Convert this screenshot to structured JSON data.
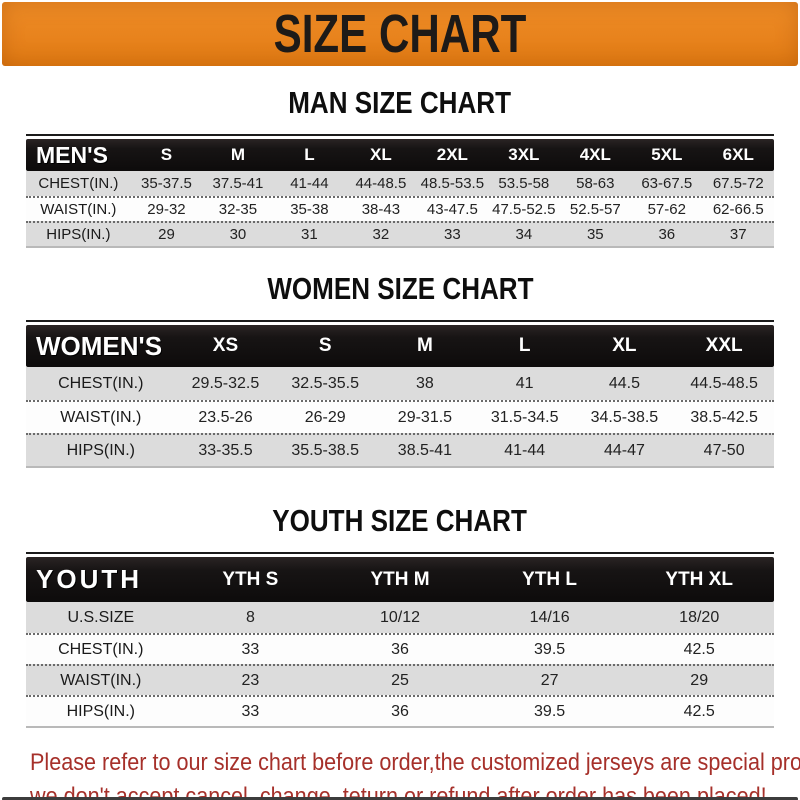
{
  "banner": {
    "title": "SIZE CHART"
  },
  "colors": {
    "banner_orange": "#e8831d",
    "bar_black": "#171414",
    "row_shade_gray": "#dcdcdc",
    "footer_red": "#a6302a"
  },
  "sections": [
    {
      "title": "MAN SIZE CHART",
      "header_label": "MEN'S",
      "columns": [
        "S",
        "M",
        "L",
        "XL",
        "2XL",
        "3XL",
        "4XL",
        "5XL",
        "6XL"
      ],
      "rows": [
        {
          "label": "CHEST(IN.)",
          "values": [
            "35-37.5",
            "37.5-41",
            "41-44",
            "44-48.5",
            "48.5-53.5",
            "53.5-58",
            "58-63",
            "63-67.5",
            "67.5-72"
          ]
        },
        {
          "label": "WAIST(IN.)",
          "values": [
            "29-32",
            "32-35",
            "35-38",
            "38-43",
            "43-47.5",
            "47.5-52.5",
            "52.5-57",
            "57-62",
            "62-66.5"
          ]
        },
        {
          "label": "HIPS(IN.)",
          "values": [
            "29",
            "30",
            "31",
            "32",
            "33",
            "34",
            "35",
            "36",
            "37"
          ]
        }
      ]
    },
    {
      "title": "WOMEN SIZE CHART",
      "header_label": "WOMEN'S",
      "columns": [
        "XS",
        "S",
        "M",
        "L",
        "XL",
        "XXL"
      ],
      "rows": [
        {
          "label": "CHEST(IN.)",
          "values": [
            "29.5-32.5",
            "32.5-35.5",
            "38",
            "41",
            "44.5",
            "44.5-48.5"
          ]
        },
        {
          "label": "WAIST(IN.)",
          "values": [
            "23.5-26",
            "26-29",
            "29-31.5",
            "31.5-34.5",
            "34.5-38.5",
            "38.5-42.5"
          ]
        },
        {
          "label": "HIPS(IN.)",
          "values": [
            "33-35.5",
            "35.5-38.5",
            "38.5-41",
            "41-44",
            "44-47",
            "47-50"
          ]
        }
      ]
    },
    {
      "title": "YOUTH SIZE CHART",
      "header_label": "YOUTH",
      "columns": [
        "YTH S",
        "YTH M",
        "YTH L",
        "YTH XL"
      ],
      "rows": [
        {
          "label": "U.S.SIZE",
          "values": [
            "8",
            "10/12",
            "14/16",
            "18/20"
          ]
        },
        {
          "label": "CHEST(IN.)",
          "values": [
            "33",
            "36",
            "39.5",
            "42.5"
          ]
        },
        {
          "label": "WAIST(IN.)",
          "values": [
            "23",
            "25",
            "27",
            "29"
          ]
        },
        {
          "label": "HIPS(IN.)",
          "values": [
            "33",
            "36",
            "39.5",
            "42.5"
          ]
        }
      ]
    }
  ],
  "footer": {
    "line1": "Please refer to our size chart before order,the customized jerseys are special products,",
    "line2": "we don't accept cancel, change, teturn or refund after order has been placed!"
  }
}
